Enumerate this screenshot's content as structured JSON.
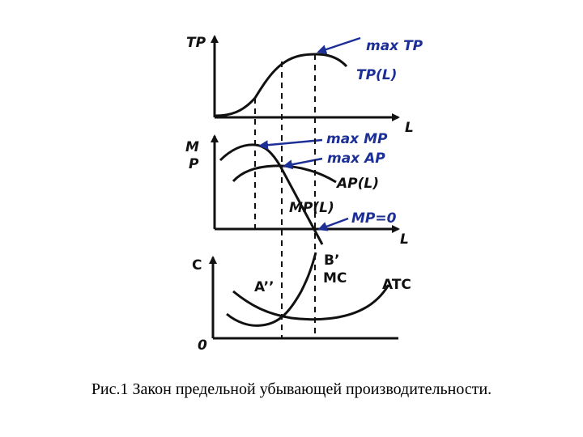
{
  "panels": {
    "tp": {
      "y_label": "TP",
      "x_label": "L",
      "annotations": {
        "max": "max TP",
        "curve": "TP(L)"
      }
    },
    "mp": {
      "y_label_1": "M",
      "y_label_2": "P",
      "x_label": "L",
      "annotations": {
        "max_mp": "max MP",
        "max_ap": "max AP",
        "ap_curve": "AP(L)",
        "mp_curve": "MP(L)",
        "mp_zero": "MP=0"
      }
    },
    "cost": {
      "y_label": "C",
      "origin_label": "0",
      "annotations": {
        "b_prime": "B’",
        "mc": "MC",
        "a_double_prime": "A’’",
        "atc": "ATC"
      }
    }
  },
  "colors": {
    "annotation": "#1c2f96",
    "line": "#111111"
  },
  "caption": "Рис.1 Закон предельной убывающей производительности."
}
